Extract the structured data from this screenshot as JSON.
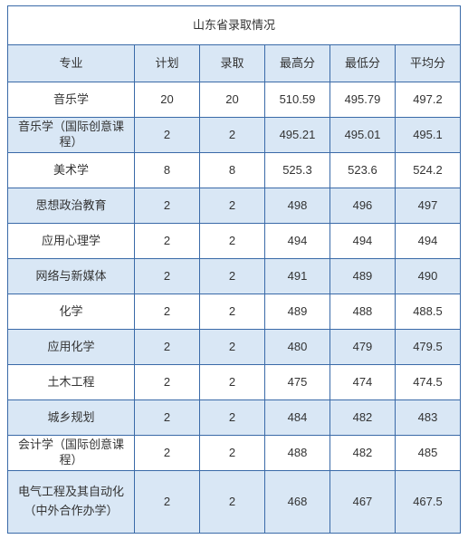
{
  "table": {
    "title": "山东省录取情况",
    "columns": [
      "专业",
      "计划",
      "录取",
      "最高分",
      "最低分",
      "平均分"
    ],
    "colors": {
      "border": "#3a6aa8",
      "header_bg": "#d9e7f5",
      "row_even_bg": "#ffffff",
      "row_odd_bg": "#d9e7f5",
      "text": "#333333"
    },
    "rows": [
      {
        "major": "音乐学",
        "plan": "20",
        "admit": "20",
        "max": "510.59",
        "min": "495.79",
        "avg": "497.2"
      },
      {
        "major": "音乐学（国际创意课程）",
        "plan": "2",
        "admit": "2",
        "max": "495.21",
        "min": "495.01",
        "avg": "495.1"
      },
      {
        "major": "美术学",
        "plan": "8",
        "admit": "8",
        "max": "525.3",
        "min": "523.6",
        "avg": "524.2"
      },
      {
        "major": "思想政治教育",
        "plan": "2",
        "admit": "2",
        "max": "498",
        "min": "496",
        "avg": "497"
      },
      {
        "major": "应用心理学",
        "plan": "2",
        "admit": "2",
        "max": "494",
        "min": "494",
        "avg": "494"
      },
      {
        "major": "网络与新媒体",
        "plan": "2",
        "admit": "2",
        "max": "491",
        "min": "489",
        "avg": "490"
      },
      {
        "major": "化学",
        "plan": "2",
        "admit": "2",
        "max": "489",
        "min": "488",
        "avg": "488.5"
      },
      {
        "major": "应用化学",
        "plan": "2",
        "admit": "2",
        "max": "480",
        "min": "479",
        "avg": "479.5"
      },
      {
        "major": "土木工程",
        "plan": "2",
        "admit": "2",
        "max": "475",
        "min": "474",
        "avg": "474.5"
      },
      {
        "major": "城乡规划",
        "plan": "2",
        "admit": "2",
        "max": "484",
        "min": "482",
        "avg": "483"
      },
      {
        "major": "会计学（国际创意课程）",
        "plan": "2",
        "admit": "2",
        "max": "488",
        "min": "482",
        "avg": "485"
      },
      {
        "major": "电气工程及其自动化（中外合作办学）",
        "plan": "2",
        "admit": "2",
        "max": "468",
        "min": "467",
        "avg": "467.5",
        "multiline": true
      }
    ]
  }
}
